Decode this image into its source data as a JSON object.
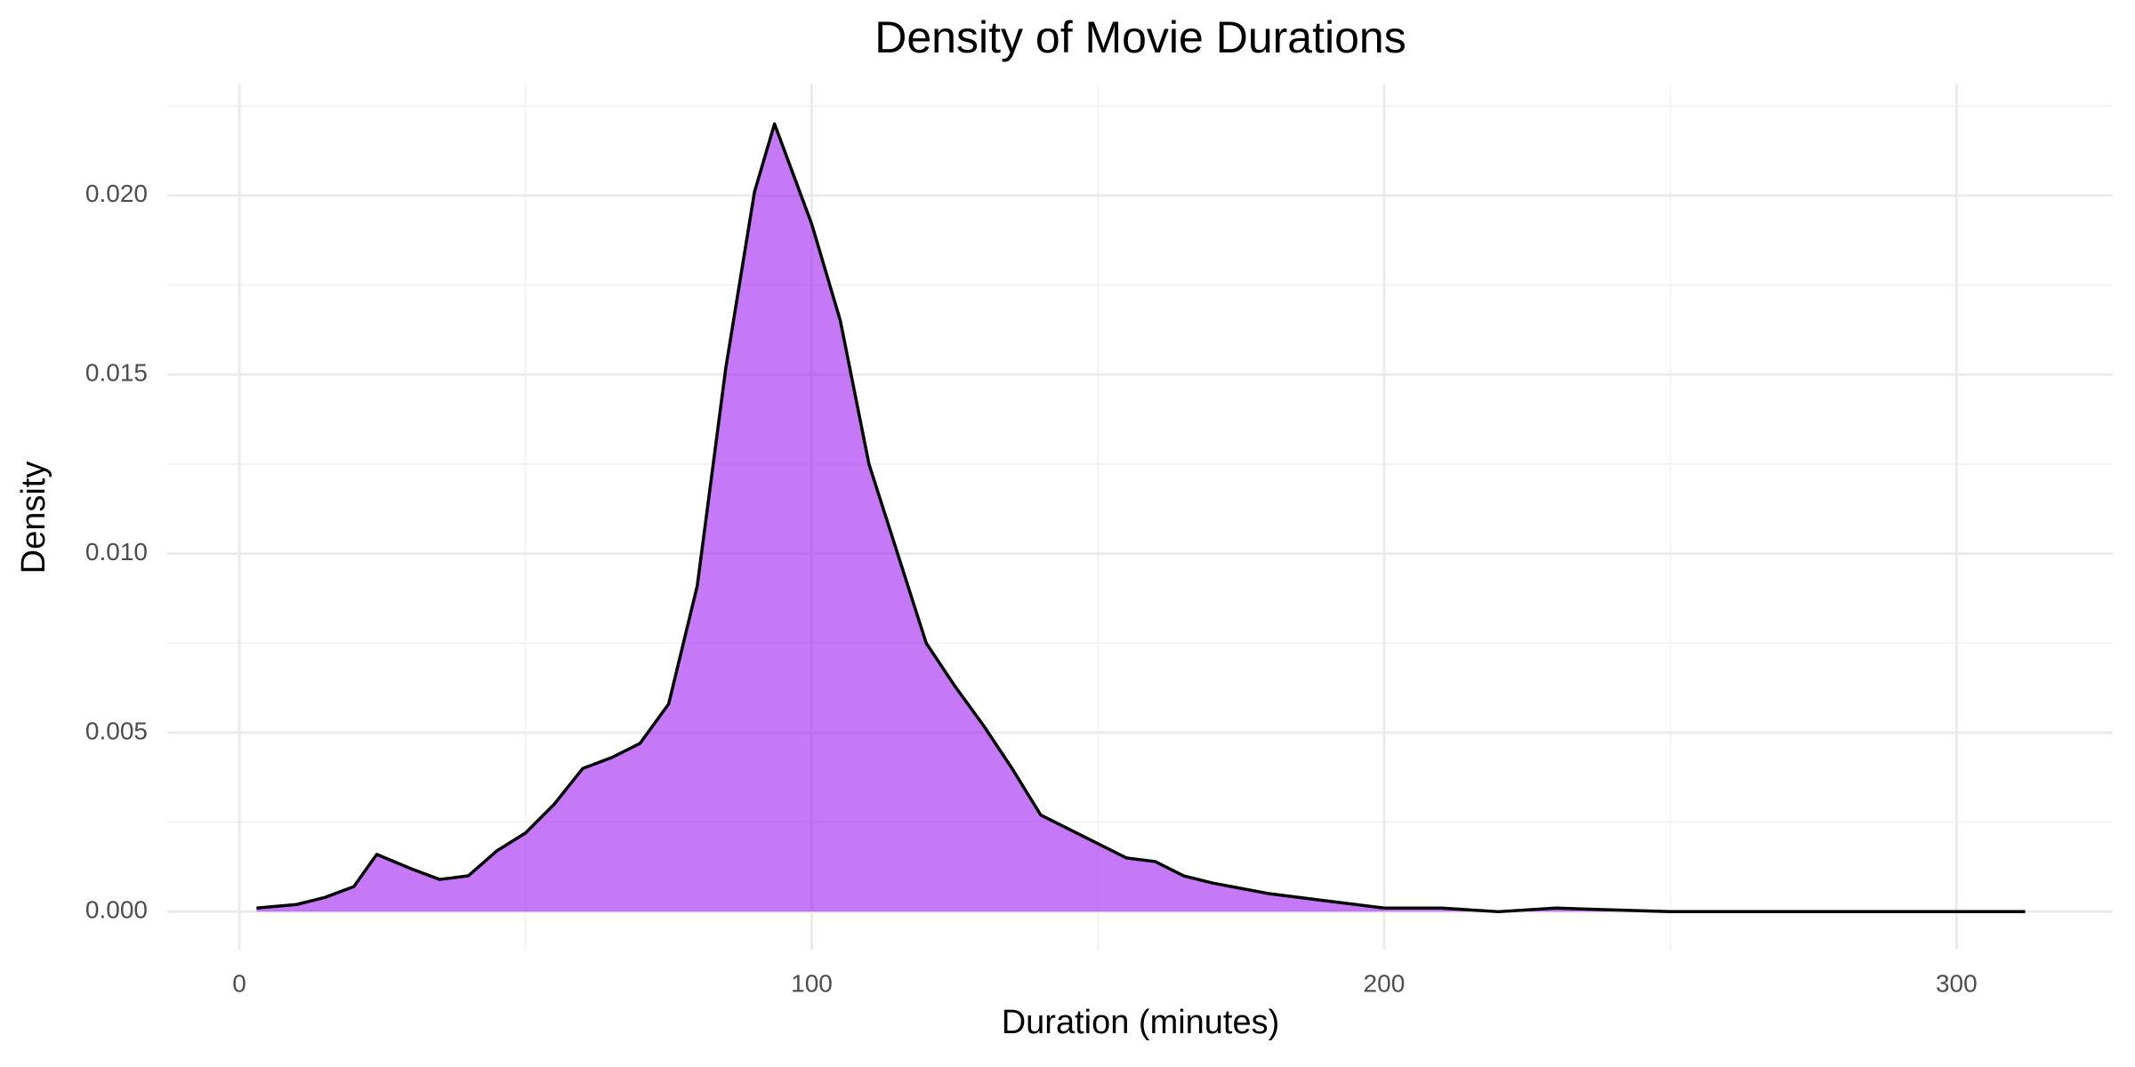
{
  "chart_data": {
    "type": "density",
    "title": "Density of Movie Durations",
    "x_label": "Duration (minutes)",
    "y_label": "Density",
    "x": [
      3,
      10,
      15,
      20,
      24,
      30,
      35,
      40,
      45,
      50,
      55,
      60,
      65,
      70,
      75,
      80,
      85,
      90,
      93.5,
      100,
      105,
      110,
      115,
      120,
      125,
      130,
      135,
      140,
      145,
      150,
      155,
      160,
      165,
      170,
      180,
      190,
      200,
      210,
      220,
      230,
      250,
      275,
      300,
      312
    ],
    "values": [
      0.0001,
      0.0002,
      0.0004,
      0.0007,
      0.0016,
      0.0012,
      0.0009,
      0.001,
      0.0017,
      0.0022,
      0.003,
      0.004,
      0.0043,
      0.0047,
      0.0058,
      0.0091,
      0.0152,
      0.0201,
      0.022,
      0.0192,
      0.0165,
      0.0125,
      0.01,
      0.0075,
      0.0063,
      0.0052,
      0.004,
      0.0027,
      0.0023,
      0.0019,
      0.0015,
      0.0014,
      0.001,
      0.0008,
      0.0005,
      0.0003,
      0.0001,
      0.0001,
      0,
      0.0001,
      0,
      0,
      0,
      0
    ],
    "color": "#a020f0",
    "alpha": 0.6,
    "line_color": "#000000",
    "xlim": [
      -12.6,
      327.3
    ],
    "ylim": [
      -0.00106,
      0.0231
    ],
    "xticks": [
      0,
      100,
      200,
      300
    ],
    "yticks": [
      {
        "value": 0,
        "label": "0.000"
      },
      0.005,
      {
        "value": 0.01,
        "label": "0.010"
      },
      0.015,
      {
        "value": 0.02,
        "label": "0.020"
      }
    ],
    "minor_xticks": [
      50,
      150,
      250
    ],
    "minor_yticks": [
      0.0025,
      0.0075,
      0.0125,
      0.0175,
      0.0225
    ],
    "grid": true
  }
}
